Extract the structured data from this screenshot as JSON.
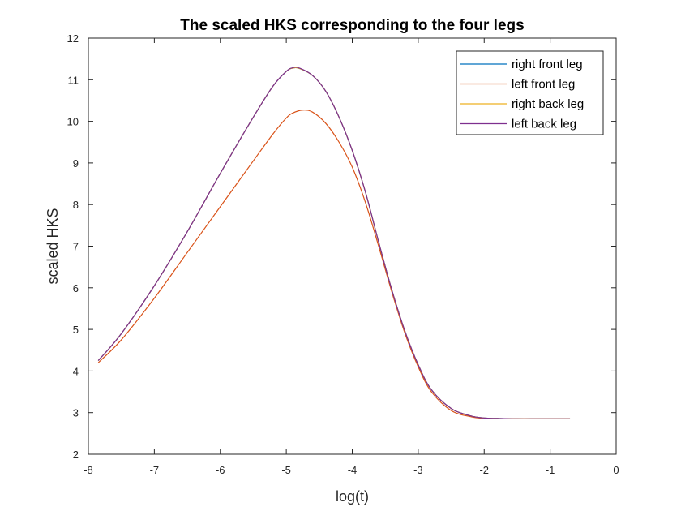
{
  "chart_data": {
    "type": "line",
    "title": "The scaled HKS corresponding to the four legs",
    "xlabel": "log(t)",
    "ylabel": "scaled HKS",
    "xlim": [
      -8,
      0
    ],
    "ylim": [
      2,
      12
    ],
    "xticks": [
      "-8",
      "-7",
      "-6",
      "-5",
      "-4",
      "-3",
      "-2",
      "-1",
      "0"
    ],
    "yticks": [
      "2",
      "3",
      "4",
      "5",
      "6",
      "7",
      "8",
      "9",
      "10",
      "11",
      "12"
    ],
    "grid": false,
    "legend_position": "top-right",
    "series": [
      {
        "name": "right front leg",
        "color": "#0072BD",
        "x": [
          -7.85,
          -7.5,
          -7.0,
          -6.5,
          -6.0,
          -5.5,
          -5.2,
          -5.0,
          -4.9,
          -4.8,
          -4.6,
          -4.4,
          -4.2,
          -4.0,
          -3.8,
          -3.6,
          -3.4,
          -3.2,
          -3.0,
          -2.8,
          -2.5,
          -2.2,
          -2.0,
          -1.8,
          -1.5,
          -1.2,
          -1.0,
          -0.7
        ],
        "y": [
          4.25,
          4.9,
          6.05,
          7.35,
          8.75,
          10.1,
          10.85,
          11.2,
          11.28,
          11.27,
          11.1,
          10.72,
          10.1,
          9.3,
          8.3,
          7.1,
          5.95,
          4.95,
          4.15,
          3.55,
          3.1,
          2.92,
          2.87,
          2.86,
          2.85,
          2.85,
          2.85,
          2.85
        ]
      },
      {
        "name": "left front leg",
        "color": "#D95319",
        "x": [
          -7.85,
          -7.5,
          -7.0,
          -6.5,
          -6.0,
          -5.5,
          -5.2,
          -5.0,
          -4.9,
          -4.75,
          -4.6,
          -4.4,
          -4.2,
          -4.0,
          -3.8,
          -3.6,
          -3.4,
          -3.2,
          -3.0,
          -2.8,
          -2.5,
          -2.2,
          -2.0,
          -1.8,
          -1.5,
          -1.2,
          -1.0,
          -0.7
        ],
        "y": [
          4.2,
          4.75,
          5.75,
          6.85,
          7.95,
          9.05,
          9.7,
          10.08,
          10.2,
          10.27,
          10.22,
          9.95,
          9.5,
          8.9,
          8.05,
          7.0,
          5.9,
          4.9,
          4.1,
          3.5,
          3.05,
          2.9,
          2.86,
          2.85,
          2.85,
          2.85,
          2.85,
          2.85
        ]
      },
      {
        "name": "right back leg",
        "color": "#EDB120",
        "x": [
          -7.85,
          -7.5,
          -7.0,
          -6.5,
          -6.0,
          -5.5,
          -5.2,
          -5.0,
          -4.9,
          -4.8,
          -4.6,
          -4.4,
          -4.2,
          -4.0,
          -3.8,
          -3.6,
          -3.4,
          -3.2,
          -3.0,
          -2.8,
          -2.5,
          -2.2,
          -2.0,
          -1.8,
          -1.5,
          -1.2,
          -1.0,
          -0.7
        ],
        "y": [
          4.25,
          4.9,
          6.05,
          7.35,
          8.75,
          10.1,
          10.85,
          11.2,
          11.28,
          11.27,
          11.1,
          10.72,
          10.1,
          9.3,
          8.3,
          7.1,
          5.95,
          4.95,
          4.15,
          3.55,
          3.1,
          2.92,
          2.87,
          2.86,
          2.85,
          2.85,
          2.85,
          2.85
        ]
      },
      {
        "name": "left back leg",
        "color": "#7E2F8E",
        "x": [
          -7.85,
          -7.5,
          -7.0,
          -6.5,
          -6.0,
          -5.5,
          -5.2,
          -5.0,
          -4.9,
          -4.8,
          -4.6,
          -4.4,
          -4.2,
          -4.0,
          -3.8,
          -3.6,
          -3.4,
          -3.2,
          -3.0,
          -2.8,
          -2.5,
          -2.2,
          -2.0,
          -1.8,
          -1.5,
          -1.2,
          -1.0,
          -0.7
        ],
        "y": [
          4.25,
          4.9,
          6.05,
          7.35,
          8.75,
          10.1,
          10.85,
          11.2,
          11.29,
          11.28,
          11.1,
          10.72,
          10.1,
          9.3,
          8.3,
          7.1,
          5.95,
          4.95,
          4.15,
          3.55,
          3.1,
          2.92,
          2.87,
          2.86,
          2.85,
          2.85,
          2.85,
          2.85
        ]
      }
    ]
  }
}
